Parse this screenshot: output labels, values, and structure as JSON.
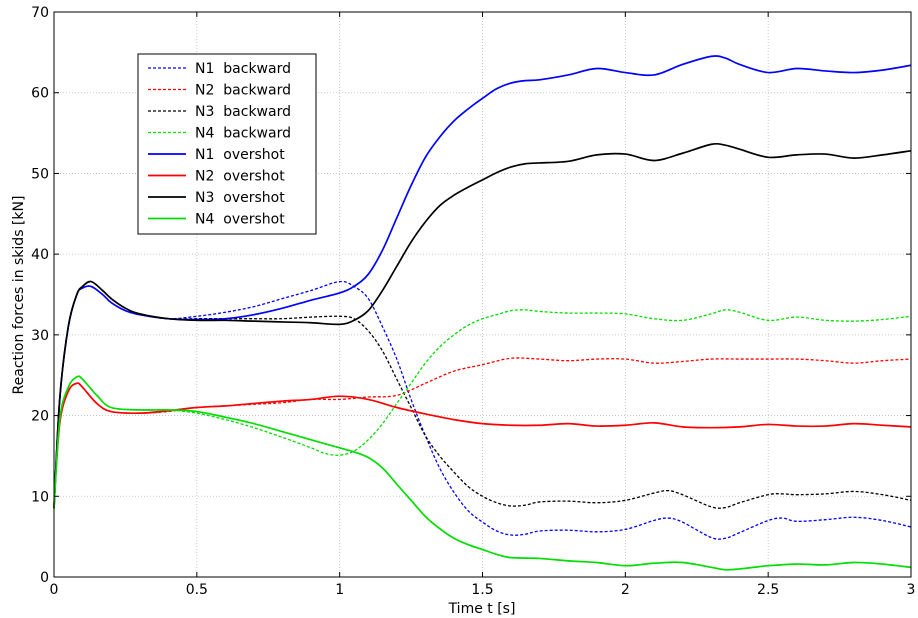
{
  "chart_data": {
    "type": "line",
    "xlabel": "Time t [s]",
    "ylabel": "Reaction forces in skids [kN]",
    "xlim": [
      0,
      3
    ],
    "ylim": [
      0,
      70
    ],
    "xticks": [
      0,
      0.5,
      1,
      1.5,
      2,
      2.5,
      3
    ],
    "xtick_labels": [
      "0",
      "0.5",
      "1",
      "1.5",
      "2",
      "2.5",
      "3"
    ],
    "yticks": [
      0,
      10,
      20,
      30,
      40,
      50,
      60,
      70
    ],
    "ytick_labels": [
      "0",
      "10",
      "20",
      "30",
      "40",
      "50",
      "60",
      "70"
    ],
    "grid": true,
    "legend_position": "top-left",
    "series": [
      {
        "name": "N1  backward",
        "color": "#0000ff",
        "style": "dashed",
        "x": [
          0,
          0.02,
          0.05,
          0.08,
          0.1,
          0.13,
          0.17,
          0.2,
          0.25,
          0.3,
          0.4,
          0.5,
          0.6,
          0.7,
          0.8,
          0.9,
          1.0,
          1.05,
          1.1,
          1.15,
          1.2,
          1.25,
          1.3,
          1.35,
          1.4,
          1.45,
          1.5,
          1.55,
          1.6,
          1.65,
          1.7,
          1.8,
          1.9,
          2.0,
          2.1,
          2.15,
          2.2,
          2.3,
          2.35,
          2.4,
          2.5,
          2.55,
          2.6,
          2.7,
          2.8,
          2.9,
          3.0
        ],
        "y": [
          8.5,
          22,
          31,
          35,
          35.8,
          36,
          35,
          34,
          33,
          32.5,
          32,
          32.3,
          32.8,
          33.5,
          34.5,
          35.5,
          36.6,
          36,
          34.5,
          31,
          27,
          22,
          17.5,
          13.5,
          10.5,
          8.2,
          6.8,
          5.7,
          5.2,
          5.3,
          5.7,
          5.8,
          5.6,
          5.9,
          7.0,
          7.3,
          6.8,
          4.9,
          4.8,
          5.5,
          7.0,
          7.3,
          6.9,
          7.1,
          7.4,
          7.0,
          6.2
        ]
      },
      {
        "name": "N2  backward",
        "color": "#ff0000",
        "style": "dashed",
        "x": [
          0,
          0.02,
          0.05,
          0.08,
          0.1,
          0.15,
          0.2,
          0.3,
          0.4,
          0.5,
          0.6,
          0.7,
          0.8,
          0.9,
          1.0,
          1.1,
          1.2,
          1.3,
          1.4,
          1.5,
          1.6,
          1.7,
          1.8,
          1.9,
          2.0,
          2.1,
          2.2,
          2.3,
          2.4,
          2.5,
          2.6,
          2.7,
          2.8,
          2.9,
          3.0
        ],
        "y": [
          9,
          19,
          23,
          24,
          23.5,
          21.5,
          20.5,
          20.3,
          20.5,
          21,
          21.2,
          21.4,
          21.6,
          22,
          22,
          22.3,
          22.5,
          24,
          25.5,
          26.3,
          27.1,
          27,
          26.8,
          27,
          27,
          26.5,
          26.7,
          27,
          27,
          27,
          27,
          26.8,
          26.5,
          26.8,
          27
        ]
      },
      {
        "name": "N3  backward",
        "color": "#000000",
        "style": "dashed",
        "x": [
          0,
          0.02,
          0.05,
          0.08,
          0.1,
          0.13,
          0.17,
          0.2,
          0.25,
          0.3,
          0.4,
          0.5,
          0.6,
          0.7,
          0.8,
          0.9,
          1.0,
          1.05,
          1.1,
          1.15,
          1.2,
          1.25,
          1.3,
          1.35,
          1.4,
          1.45,
          1.5,
          1.55,
          1.6,
          1.65,
          1.7,
          1.8,
          1.9,
          2.0,
          2.1,
          2.15,
          2.2,
          2.3,
          2.35,
          2.4,
          2.5,
          2.55,
          2.6,
          2.7,
          2.8,
          2.9,
          3.0
        ],
        "y": [
          8.5,
          22,
          31,
          35,
          36,
          36.6,
          35.5,
          34.5,
          33.3,
          32.6,
          32,
          32,
          32,
          32,
          32,
          32.2,
          32.3,
          32,
          30.5,
          28,
          24.5,
          21,
          17.5,
          15,
          13,
          11.2,
          10,
          9.2,
          8.8,
          8.9,
          9.3,
          9.4,
          9.2,
          9.5,
          10.4,
          10.7,
          10.2,
          8.7,
          8.6,
          9.2,
          10.2,
          10.3,
          10.2,
          10.3,
          10.6,
          10.2,
          9.5
        ]
      },
      {
        "name": "N4  backward",
        "color": "#00dd00",
        "style": "dashed",
        "x": [
          0,
          0.02,
          0.05,
          0.08,
          0.1,
          0.15,
          0.2,
          0.3,
          0.4,
          0.5,
          0.6,
          0.7,
          0.8,
          0.9,
          0.95,
          1.0,
          1.05,
          1.1,
          1.15,
          1.2,
          1.25,
          1.3,
          1.35,
          1.4,
          1.45,
          1.5,
          1.55,
          1.6,
          1.65,
          1.7,
          1.8,
          1.9,
          2.0,
          2.1,
          2.2,
          2.3,
          2.35,
          2.4,
          2.5,
          2.6,
          2.7,
          2.8,
          2.9,
          3.0
        ],
        "y": [
          8.5,
          19.5,
          23.5,
          24.8,
          24.5,
          22.5,
          21,
          20.7,
          20.7,
          20.3,
          19.5,
          18.5,
          17.3,
          16,
          15.3,
          15.1,
          15.6,
          17,
          19,
          21.5,
          24,
          26.5,
          28.5,
          30,
          31.2,
          32,
          32.5,
          33,
          33.1,
          32.9,
          32.7,
          32.7,
          32.6,
          32,
          31.8,
          32.6,
          33.1,
          32.8,
          31.8,
          32.2,
          31.8,
          31.7,
          31.9,
          32.3
        ]
      },
      {
        "name": "N1  overshot",
        "color": "#0000ff",
        "style": "solid",
        "x": [
          0,
          0.02,
          0.05,
          0.08,
          0.1,
          0.13,
          0.17,
          0.2,
          0.25,
          0.3,
          0.4,
          0.5,
          0.6,
          0.7,
          0.8,
          0.9,
          1.0,
          1.05,
          1.1,
          1.15,
          1.2,
          1.25,
          1.3,
          1.35,
          1.4,
          1.45,
          1.5,
          1.55,
          1.6,
          1.65,
          1.7,
          1.8,
          1.9,
          2.0,
          2.1,
          2.2,
          2.3,
          2.35,
          2.4,
          2.5,
          2.6,
          2.7,
          2.8,
          2.9,
          3.0
        ],
        "y": [
          8.5,
          22,
          31,
          35,
          35.8,
          36,
          35,
          34,
          33,
          32.5,
          32,
          31.9,
          32,
          32.5,
          33.3,
          34.3,
          35.2,
          36,
          37.5,
          40.5,
          44.5,
          48.5,
          52,
          54.5,
          56.5,
          58,
          59.3,
          60.5,
          61.2,
          61.5,
          61.6,
          62.2,
          63,
          62.5,
          62.2,
          63.5,
          64.5,
          64.3,
          63.5,
          62.5,
          63,
          62.7,
          62.5,
          62.8,
          63.4
        ]
      },
      {
        "name": "N2  overshot",
        "color": "#ff0000",
        "style": "solid",
        "x": [
          0,
          0.02,
          0.05,
          0.08,
          0.1,
          0.15,
          0.2,
          0.3,
          0.4,
          0.5,
          0.6,
          0.7,
          0.8,
          0.9,
          1.0,
          1.1,
          1.2,
          1.3,
          1.4,
          1.5,
          1.6,
          1.7,
          1.8,
          1.9,
          2.0,
          2.1,
          2.2,
          2.3,
          2.4,
          2.5,
          2.6,
          2.7,
          2.8,
          2.9,
          3.0
        ],
        "y": [
          9,
          19,
          23,
          24,
          23.5,
          21.5,
          20.5,
          20.3,
          20.6,
          21,
          21.2,
          21.5,
          21.8,
          22,
          22.4,
          22,
          21,
          20.2,
          19.5,
          19,
          18.8,
          18.8,
          19,
          18.7,
          18.8,
          19.1,
          18.6,
          18.5,
          18.6,
          18.9,
          18.7,
          18.7,
          19,
          18.8,
          18.6
        ]
      },
      {
        "name": "N3  overshot",
        "color": "#000000",
        "style": "solid",
        "x": [
          0,
          0.02,
          0.05,
          0.08,
          0.1,
          0.13,
          0.17,
          0.2,
          0.25,
          0.3,
          0.4,
          0.5,
          0.6,
          0.7,
          0.8,
          0.9,
          1.0,
          1.05,
          1.1,
          1.15,
          1.2,
          1.25,
          1.3,
          1.35,
          1.4,
          1.45,
          1.5,
          1.55,
          1.6,
          1.65,
          1.7,
          1.8,
          1.9,
          2.0,
          2.1,
          2.2,
          2.3,
          2.35,
          2.4,
          2.5,
          2.6,
          2.7,
          2.8,
          2.9,
          3.0
        ],
        "y": [
          8.5,
          22,
          31,
          35,
          36,
          36.6,
          35.5,
          34.5,
          33.3,
          32.6,
          32,
          31.8,
          31.8,
          31.7,
          31.6,
          31.5,
          31.3,
          31.8,
          33,
          35.5,
          38.5,
          41.5,
          44,
          46,
          47.3,
          48.3,
          49.2,
          50.1,
          50.8,
          51.2,
          51.3,
          51.5,
          52.3,
          52.4,
          51.6,
          52.5,
          53.6,
          53.5,
          53,
          52,
          52.3,
          52.4,
          51.9,
          52.3,
          52.8
        ]
      },
      {
        "name": "N4  overshot",
        "color": "#00dd00",
        "style": "solid",
        "x": [
          0,
          0.02,
          0.05,
          0.08,
          0.1,
          0.15,
          0.2,
          0.3,
          0.4,
          0.5,
          0.6,
          0.7,
          0.8,
          0.9,
          1.0,
          1.05,
          1.1,
          1.15,
          1.2,
          1.25,
          1.3,
          1.35,
          1.4,
          1.45,
          1.5,
          1.55,
          1.6,
          1.7,
          1.8,
          1.9,
          2.0,
          2.1,
          2.2,
          2.3,
          2.35,
          2.4,
          2.5,
          2.6,
          2.7,
          2.8,
          2.9,
          3.0
        ],
        "y": [
          8.5,
          19.5,
          23.5,
          24.8,
          24.5,
          22.5,
          21,
          20.7,
          20.7,
          20.5,
          19.8,
          19,
          18,
          17,
          16,
          15.5,
          14.8,
          13.5,
          11.5,
          9.5,
          7.5,
          6,
          4.8,
          4,
          3.4,
          2.8,
          2.4,
          2.3,
          2,
          1.8,
          1.4,
          1.7,
          1.8,
          1.2,
          0.9,
          1.0,
          1.4,
          1.6,
          1.5,
          1.8,
          1.6,
          1.2
        ]
      }
    ]
  }
}
